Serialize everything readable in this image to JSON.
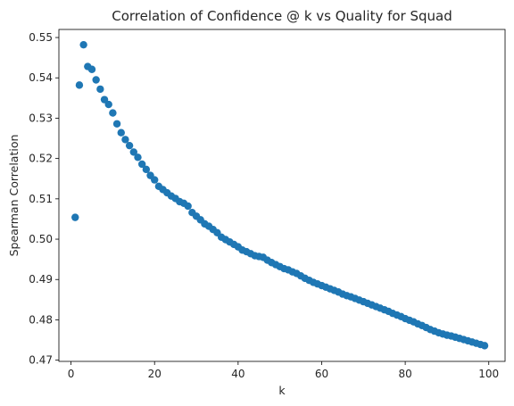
{
  "chart_data": {
    "type": "scatter",
    "title": "Correlation of Confidence @ k vs Quality for Squad",
    "xlabel": "k",
    "ylabel": "Spearman Correlation",
    "xlim": [
      -2.9,
      103.9
    ],
    "ylim": [
      0.4697,
      0.552
    ],
    "xticks": [
      0,
      20,
      40,
      60,
      80,
      100
    ],
    "yticks": [
      0.47,
      0.48,
      0.49,
      0.5,
      0.51,
      0.52,
      0.53,
      0.54,
      0.55
    ],
    "ytick_labels": [
      "0.47",
      "0.48",
      "0.49",
      "0.50",
      "0.51",
      "0.52",
      "0.53",
      "0.54",
      "0.55"
    ],
    "xtick_labels": [
      "0",
      "20",
      "40",
      "60",
      "80",
      "100"
    ],
    "grid": false,
    "color": "#1f77b4",
    "x": [
      1,
      2,
      3,
      4,
      5,
      6,
      7,
      8,
      9,
      10,
      11,
      12,
      13,
      14,
      15,
      16,
      17,
      18,
      19,
      20,
      21,
      22,
      23,
      24,
      25,
      26,
      27,
      28,
      29,
      30,
      31,
      32,
      33,
      34,
      35,
      36,
      37,
      38,
      39,
      40,
      41,
      42,
      43,
      44,
      45,
      46,
      47,
      48,
      49,
      50,
      51,
      52,
      53,
      54,
      55,
      56,
      57,
      58,
      59,
      60,
      61,
      62,
      63,
      64,
      65,
      66,
      67,
      68,
      69,
      70,
      71,
      72,
      73,
      74,
      75,
      76,
      77,
      78,
      79,
      80,
      81,
      82,
      83,
      84,
      85,
      86,
      87,
      88,
      89,
      90,
      91,
      92,
      93,
      94,
      95,
      96,
      97,
      98,
      99
    ],
    "y": [
      0.5054,
      0.5382,
      0.5482,
      0.5428,
      0.5421,
      0.5395,
      0.5372,
      0.5346,
      0.5334,
      0.5313,
      0.5286,
      0.5264,
      0.5247,
      0.5232,
      0.5216,
      0.5203,
      0.5186,
      0.5173,
      0.5158,
      0.5147,
      0.5131,
      0.5123,
      0.5115,
      0.5107,
      0.5101,
      0.5093,
      0.5089,
      0.5082,
      0.5066,
      0.5057,
      0.5048,
      0.5038,
      0.5032,
      0.5024,
      0.5016,
      0.5005,
      0.4999,
      0.4993,
      0.4987,
      0.4981,
      0.4973,
      0.4969,
      0.4964,
      0.4959,
      0.4957,
      0.4955,
      0.4948,
      0.4942,
      0.4937,
      0.4932,
      0.4927,
      0.4924,
      0.4919,
      0.4915,
      0.4909,
      0.4903,
      0.4898,
      0.4893,
      0.4889,
      0.4885,
      0.4881,
      0.4877,
      0.4873,
      0.4869,
      0.4864,
      0.486,
      0.4857,
      0.4853,
      0.4849,
      0.4845,
      0.4841,
      0.4837,
      0.4833,
      0.4829,
      0.4825,
      0.4821,
      0.4816,
      0.4812,
      0.4808,
      0.4803,
      0.4799,
      0.4795,
      0.479,
      0.4786,
      0.4781,
      0.4776,
      0.4772,
      0.4768,
      0.4765,
      0.4762,
      0.476,
      0.4757,
      0.4754,
      0.4751,
      0.4748,
      0.4745,
      0.4742,
      0.4739,
      0.4736
    ]
  }
}
